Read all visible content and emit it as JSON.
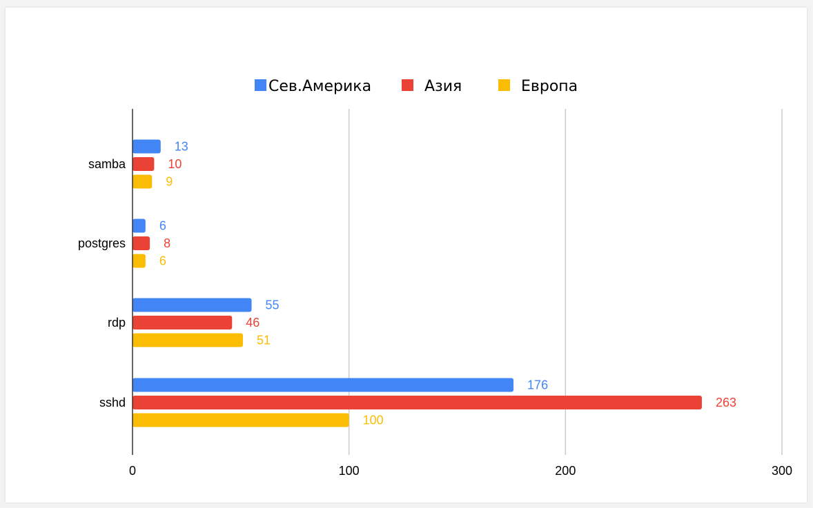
{
  "chart_data": {
    "type": "bar",
    "orientation": "horizontal",
    "title": "",
    "xlabel": "",
    "ylabel": "",
    "categories": [
      "samba",
      "postgres",
      "rdp",
      "sshd"
    ],
    "series": [
      {
        "name": "Сев.Америка",
        "color": "#4285f4",
        "values": [
          13,
          6,
          55,
          176
        ]
      },
      {
        "name": "Азия",
        "color": "#ea4335",
        "values": [
          10,
          8,
          46,
          263
        ]
      },
      {
        "name": "Европа",
        "color": "#fbbc04",
        "values": [
          9,
          6,
          51,
          100
        ]
      }
    ],
    "xlim": [
      0,
      300
    ],
    "xticks": [
      0,
      100,
      200,
      300
    ],
    "xtick_labels": [
      "0",
      "100",
      "200",
      "300"
    ],
    "grid": true,
    "legend_position": "top",
    "data_labels": true
  }
}
